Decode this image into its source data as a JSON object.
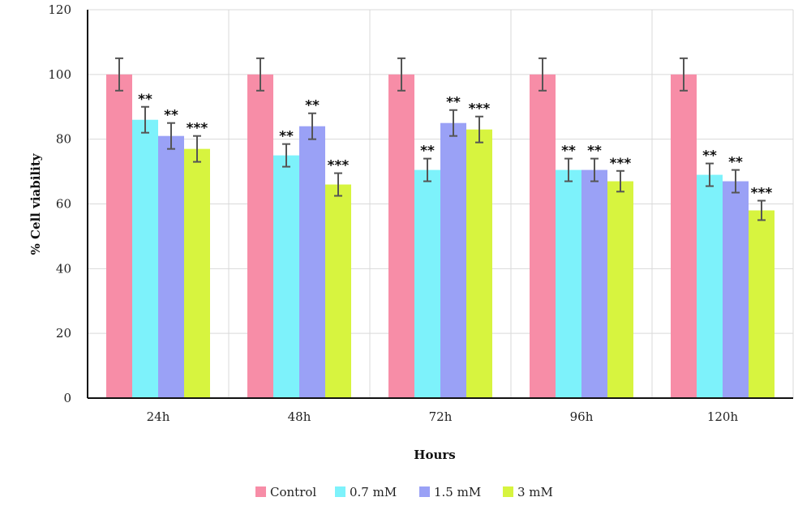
{
  "chart_data": {
    "type": "bar",
    "title": "",
    "xlabel": "Hours",
    "ylabel": "% Cell viability",
    "ylim": [
      0,
      120
    ],
    "yticks": [
      0,
      20,
      40,
      60,
      80,
      100,
      120
    ],
    "categories": [
      "24h",
      "48h",
      "72h",
      "96h",
      "120h"
    ],
    "grid": true,
    "legend_position": "bottom",
    "series": [
      {
        "name": "Control",
        "color": "#F78DA7",
        "values": [
          100,
          100,
          100,
          100,
          100
        ],
        "errors": [
          5,
          5,
          5,
          5,
          5
        ],
        "significance": [
          "",
          "",
          "",
          "",
          ""
        ]
      },
      {
        "name": "0.7 mM",
        "color": "#7DF2FB",
        "values": [
          86,
          75,
          70.5,
          70.5,
          69
        ],
        "errors": [
          4,
          3.5,
          3.5,
          3.5,
          3.5
        ],
        "significance": [
          "**",
          "**",
          "**",
          "**",
          "**"
        ]
      },
      {
        "name": "1.5 mM",
        "color": "#9AA1F6",
        "values": [
          81,
          84,
          85,
          70.5,
          67
        ],
        "errors": [
          4,
          4,
          4,
          3.5,
          3.5
        ],
        "significance": [
          "**",
          "**",
          "**",
          "**",
          "**"
        ]
      },
      {
        "name": "3 mM",
        "color": "#D7F43F",
        "values": [
          77,
          66,
          83,
          67,
          58
        ],
        "errors": [
          4,
          3.5,
          4,
          3.2,
          3
        ],
        "significance": [
          "***",
          "***",
          "***",
          "***",
          "***"
        ]
      }
    ]
  }
}
